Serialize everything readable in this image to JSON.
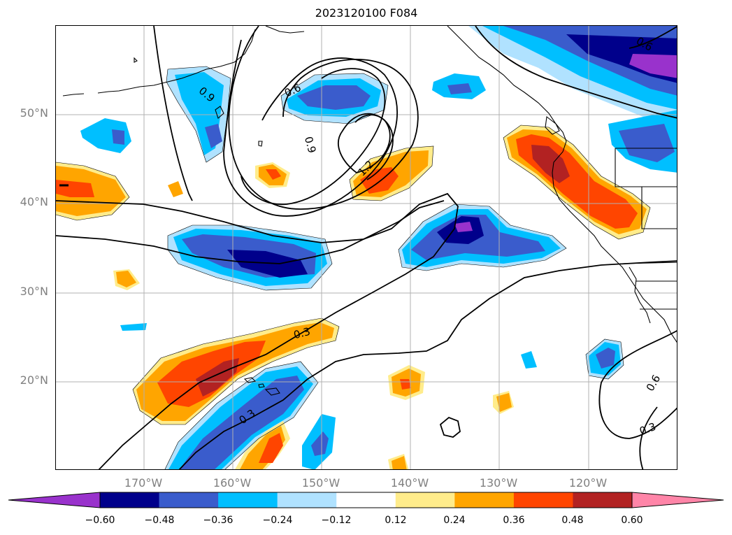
{
  "title": "2023120100 F084",
  "lat_labels": [
    "50°N",
    "40°N",
    "30°N",
    "20°N"
  ],
  "lon_labels": [
    "170°W",
    "160°W",
    "150°W",
    "140°W",
    "130°W",
    "120°W"
  ],
  "colorbar": {
    "ticks": [
      "−0.60",
      "−0.48",
      "−0.36",
      "−0.24",
      "−0.12",
      "0.12",
      "0.24",
      "0.36",
      "0.48",
      "0.60"
    ],
    "colors": [
      "#9932cc",
      "#00008b",
      "#3a5ccc",
      "#00bfff",
      "#b0e2ff",
      "#ffffff",
      "#ffec8b",
      "#ffa500",
      "#ff4500",
      "#b22222",
      "#ff85a8"
    ]
  },
  "contour_labels": [
    "0.9",
    "0.6",
    "0.9",
    "1.2",
    "0.6",
    "0.3",
    "0.3",
    "0.6",
    "0.3"
  ],
  "fill_colors": {
    "neg_light": "#b0e2ff",
    "neg_sky": "#00bfff",
    "neg_blue": "#3a5ccc",
    "neg_navy": "#00008b",
    "neg_purple": "#9932cc",
    "pos_yellow": "#ffec8b",
    "pos_orange": "#ffa500",
    "pos_red": "#ff4500",
    "pos_brick": "#b22222"
  }
}
